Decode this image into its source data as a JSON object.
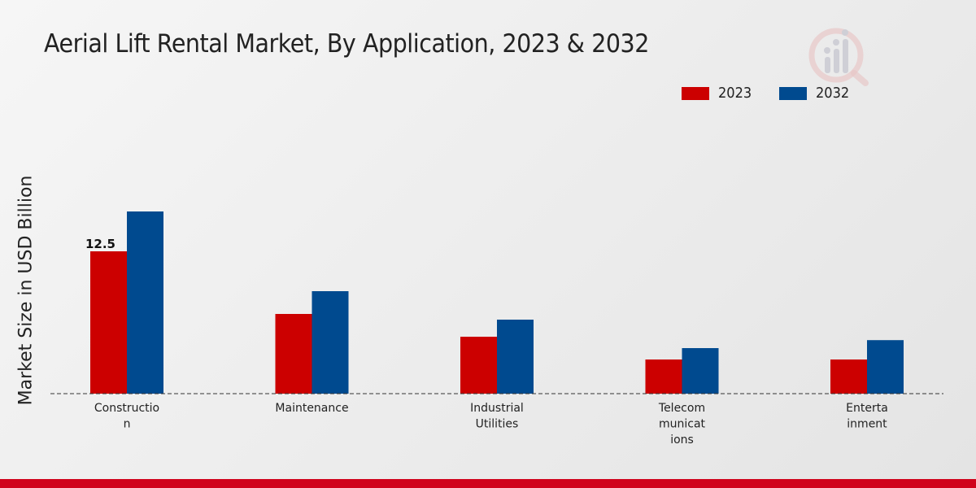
{
  "chart_data": {
    "type": "bar",
    "title": "Aerial Lift Rental Market, By Application, 2023 & 2032",
    "ylabel": "Market Size in USD Billion",
    "xlabel": "",
    "categories": [
      "Construction",
      "Maintenance",
      "Industrial Utilities",
      "Telecommunications",
      "Entertainment"
    ],
    "category_labels": [
      [
        "Constructio",
        "n"
      ],
      [
        "Maintenance"
      ],
      [
        "Industrial",
        "Utilities"
      ],
      [
        "Telecom",
        "municat",
        "ions"
      ],
      [
        "Enterta",
        "inment"
      ]
    ],
    "series": [
      {
        "name": "2023",
        "color": "#cc0000",
        "values": [
          12.5,
          7.0,
          5.0,
          3.0,
          3.0
        ]
      },
      {
        "name": "2032",
        "color": "#004a8f",
        "values": [
          16.0,
          9.0,
          6.5,
          4.0,
          4.7
        ]
      }
    ],
    "data_labels": [
      {
        "series": 0,
        "category": 0,
        "text": "12.5"
      }
    ],
    "ylim": [
      0,
      25
    ],
    "grid": false,
    "legend": "top-right"
  }
}
